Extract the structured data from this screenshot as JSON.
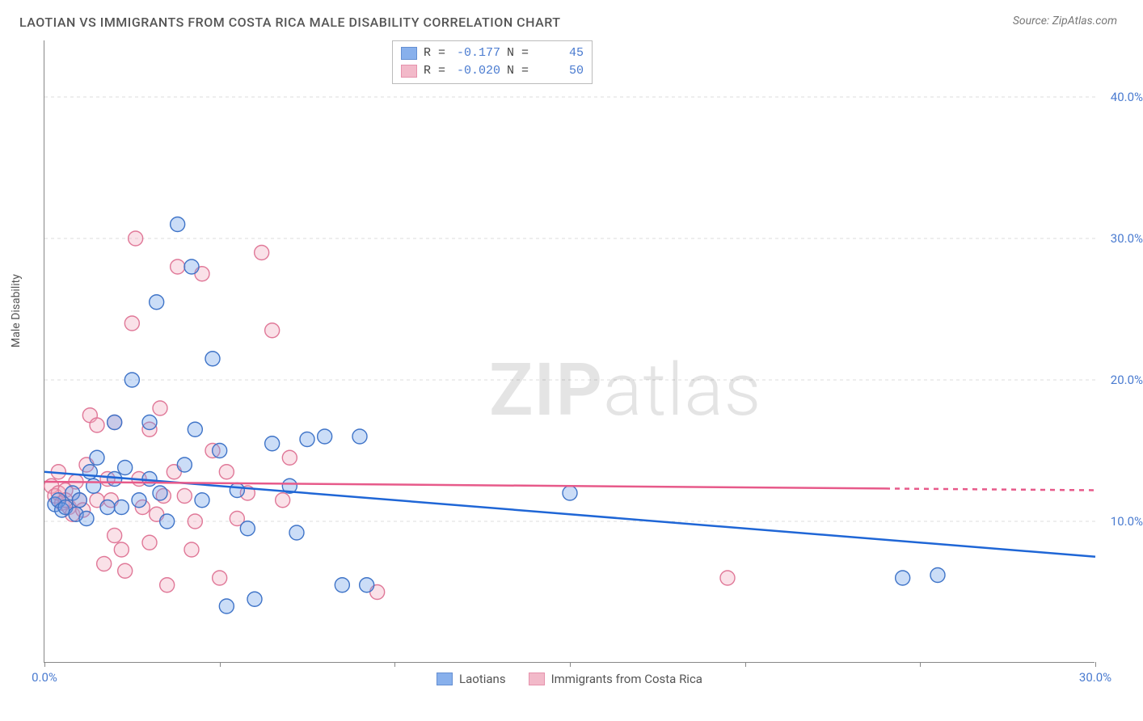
{
  "title": "LAOTIAN VS IMMIGRANTS FROM COSTA RICA MALE DISABILITY CORRELATION CHART",
  "source": "Source: ZipAtlas.com",
  "y_axis_label": "Male Disability",
  "watermark_bold": "ZIP",
  "watermark_light": "atlas",
  "chart": {
    "type": "scatter",
    "background_color": "#ffffff",
    "grid_color": "#dddddd",
    "axis_color": "#888888",
    "tick_label_color": "#4a7bd0",
    "xlim": [
      0,
      30
    ],
    "ylim": [
      0,
      44
    ],
    "x_ticks": [
      0,
      5,
      10,
      15,
      20,
      25,
      30
    ],
    "x_tick_labels_shown": {
      "0": "0.0%",
      "30": "30.0%"
    },
    "y_ticks": [
      10,
      20,
      30,
      40
    ],
    "y_tick_labels": [
      "10.0%",
      "20.0%",
      "30.0%",
      "40.0%"
    ],
    "marker_radius": 9,
    "marker_fill_opacity": 0.35,
    "label_fontsize": 15,
    "title_fontsize": 16,
    "series": [
      {
        "name": "Laotians",
        "color": "#6b9de8",
        "stroke": "#3f74c8",
        "line_color": "#1f66d6",
        "line_width": 2.5,
        "R": "-0.177",
        "N": "45",
        "regression": {
          "x1": 0,
          "y1": 13.5,
          "x2": 30,
          "y2": 7.5,
          "dash_from_x": null
        },
        "points": [
          [
            0.3,
            11.2
          ],
          [
            0.4,
            11.5
          ],
          [
            0.5,
            10.8
          ],
          [
            0.6,
            11.0
          ],
          [
            0.8,
            12.0
          ],
          [
            0.9,
            10.5
          ],
          [
            1.0,
            11.5
          ],
          [
            1.2,
            10.2
          ],
          [
            1.4,
            12.5
          ],
          [
            1.5,
            14.5
          ],
          [
            1.8,
            11.0
          ],
          [
            2.0,
            13.0
          ],
          [
            2.0,
            17.0
          ],
          [
            2.3,
            13.8
          ],
          [
            2.5,
            20.0
          ],
          [
            2.7,
            11.5
          ],
          [
            3.0,
            17.0
          ],
          [
            3.2,
            25.5
          ],
          [
            3.3,
            12.0
          ],
          [
            3.5,
            10.0
          ],
          [
            3.8,
            31.0
          ],
          [
            4.0,
            14.0
          ],
          [
            4.2,
            28.0
          ],
          [
            4.5,
            11.5
          ],
          [
            4.8,
            21.5
          ],
          [
            5.0,
            15.0
          ],
          [
            5.2,
            4.0
          ],
          [
            5.5,
            12.2
          ],
          [
            5.8,
            9.5
          ],
          [
            6.0,
            4.5
          ],
          [
            6.5,
            15.5
          ],
          [
            7.0,
            12.5
          ],
          [
            7.2,
            9.2
          ],
          [
            7.5,
            15.8
          ],
          [
            8.0,
            16.0
          ],
          [
            8.5,
            5.5
          ],
          [
            9.0,
            16.0
          ],
          [
            9.2,
            5.5
          ],
          [
            15.0,
            12.0
          ],
          [
            24.5,
            6.0
          ],
          [
            25.5,
            6.2
          ],
          [
            3.0,
            13.0
          ],
          [
            2.2,
            11.0
          ],
          [
            1.3,
            13.5
          ],
          [
            4.3,
            16.5
          ]
        ]
      },
      {
        "name": "Immigrants from Costa Rica",
        "color": "#f0a8bc",
        "stroke": "#e07898",
        "line_color": "#e75a8a",
        "line_width": 2.5,
        "R": "-0.020",
        "N": "50",
        "regression": {
          "x1": 0,
          "y1": 12.8,
          "x2": 30,
          "y2": 12.2,
          "dash_from_x": 24
        },
        "points": [
          [
            0.2,
            12.5
          ],
          [
            0.3,
            11.8
          ],
          [
            0.4,
            12.0
          ],
          [
            0.5,
            11.3
          ],
          [
            0.6,
            12.2
          ],
          [
            0.7,
            11.0
          ],
          [
            0.8,
            10.5
          ],
          [
            0.9,
            12.8
          ],
          [
            1.0,
            11.5
          ],
          [
            1.1,
            10.8
          ],
          [
            1.3,
            17.5
          ],
          [
            1.5,
            16.8
          ],
          [
            1.5,
            11.5
          ],
          [
            1.7,
            7.0
          ],
          [
            1.8,
            13.0
          ],
          [
            2.0,
            17.0
          ],
          [
            2.0,
            9.0
          ],
          [
            2.2,
            8.0
          ],
          [
            2.3,
            6.5
          ],
          [
            2.5,
            24.0
          ],
          [
            2.6,
            30.0
          ],
          [
            2.8,
            11.0
          ],
          [
            3.0,
            16.5
          ],
          [
            3.0,
            8.5
          ],
          [
            3.2,
            10.5
          ],
          [
            3.3,
            18.0
          ],
          [
            3.5,
            5.5
          ],
          [
            3.7,
            13.5
          ],
          [
            3.8,
            28.0
          ],
          [
            4.0,
            11.8
          ],
          [
            4.2,
            8.0
          ],
          [
            4.3,
            10.0
          ],
          [
            4.5,
            27.5
          ],
          [
            4.8,
            15.0
          ],
          [
            5.0,
            6.0
          ],
          [
            5.2,
            13.5
          ],
          [
            5.5,
            10.2
          ],
          [
            5.8,
            12.0
          ],
          [
            6.2,
            29.0
          ],
          [
            6.5,
            23.5
          ],
          [
            6.8,
            11.5
          ],
          [
            7.0,
            14.5
          ],
          [
            9.5,
            5.0
          ],
          [
            19.5,
            6.0
          ],
          [
            2.7,
            13.0
          ],
          [
            1.2,
            14.0
          ],
          [
            1.9,
            11.5
          ],
          [
            3.4,
            11.8
          ],
          [
            0.4,
            13.5
          ],
          [
            0.6,
            11.5
          ]
        ]
      }
    ]
  },
  "corr_box": {
    "R_label": "R =",
    "N_label": "N ="
  },
  "bottom_legend": {
    "items": [
      "Laotians",
      "Immigrants from Costa Rica"
    ]
  }
}
